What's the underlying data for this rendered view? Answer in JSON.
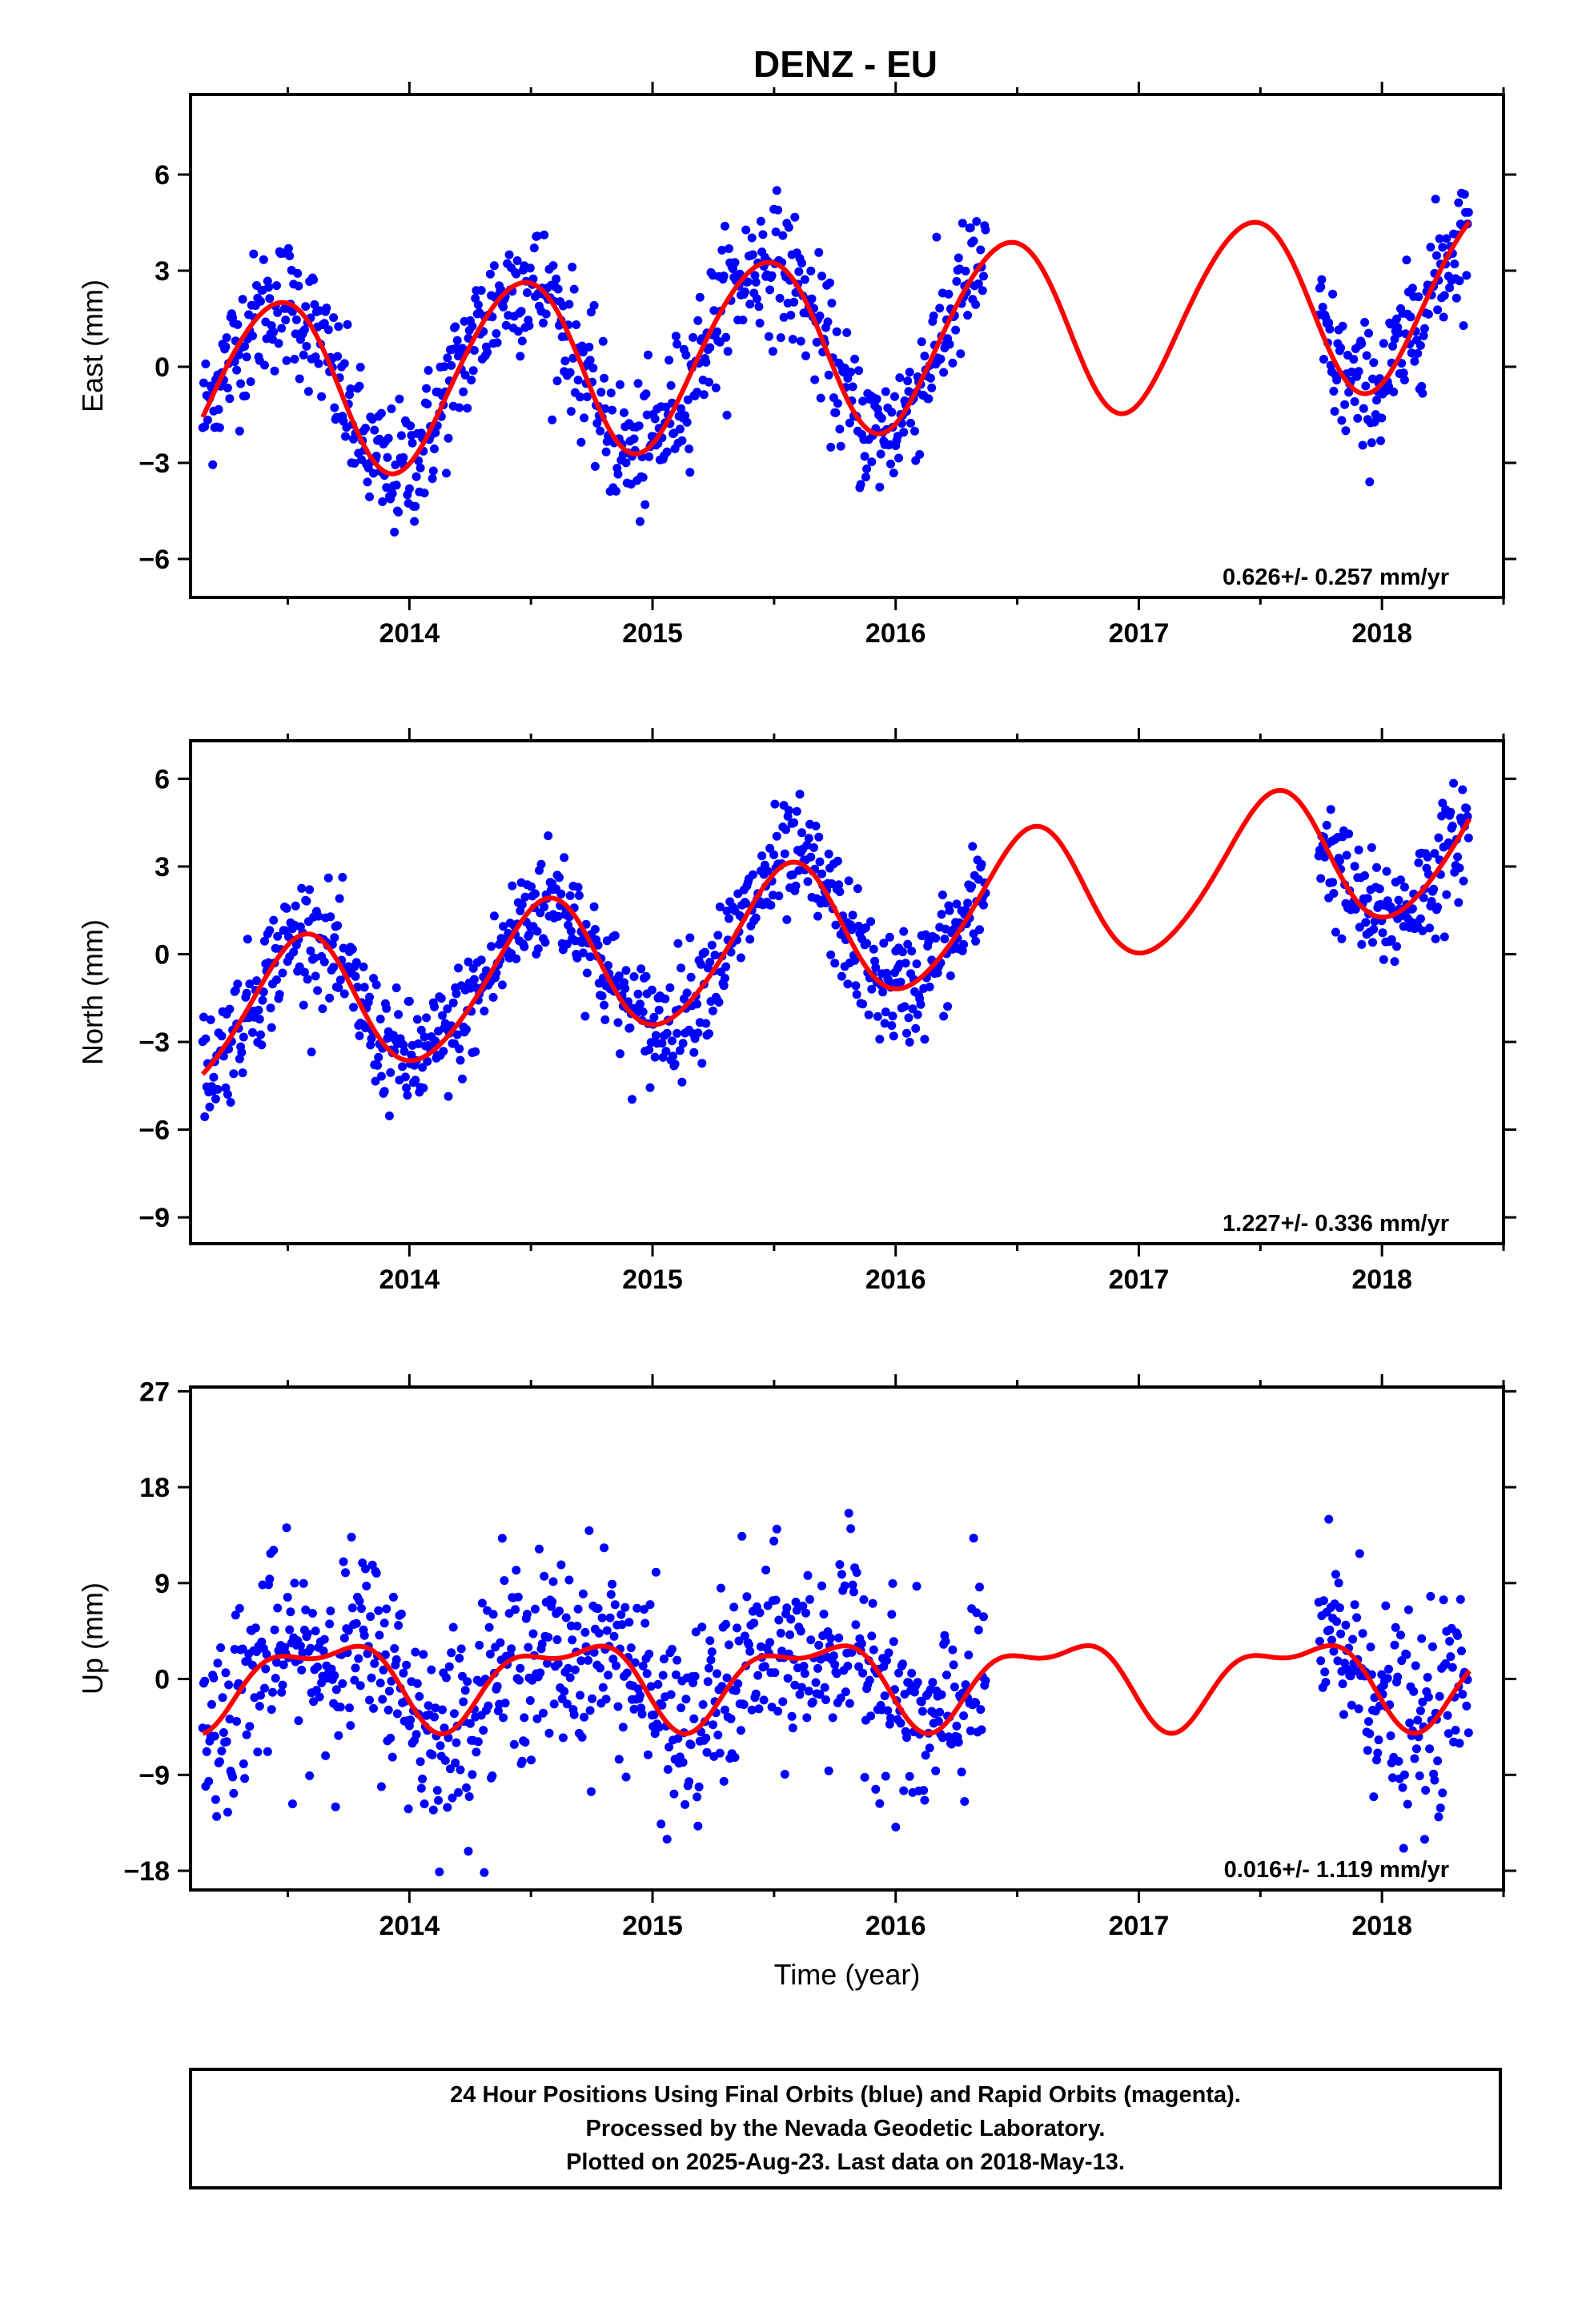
{
  "title": "DENZ - EU",
  "footer": {
    "line1": "24 Hour Positions Using Final Orbits (blue) and Rapid Orbits (magenta).",
    "line2": "Processed by the Nevada Geodetic Laboratory.",
    "line3": "Plotted on 2025-Aug-23. Last data on 2018-May-13."
  },
  "colors": {
    "points": "#0000ff",
    "fit": "#ff0000",
    "axis": "#000000"
  },
  "chart_data": [
    {
      "type": "scatter",
      "component": "east",
      "ylabel": "East (mm)",
      "xlabel": "",
      "xlim": [
        2013.1,
        2018.5
      ],
      "ylim": [
        -7.2,
        8.5
      ],
      "xticks": [
        2014,
        2015,
        2016,
        2017,
        2018
      ],
      "yticks": [
        -6,
        -3,
        0,
        3,
        6
      ],
      "rate_text": "0.626+/- 0.257 mm/yr",
      "series": [
        {
          "kind": "points",
          "segments": [
            [
              2013.15,
              2016.37
            ],
            [
              2017.74,
              2018.36
            ]
          ],
          "rate": 0.626,
          "amp1": 2.8,
          "ph1": 0.2,
          "amp2": 0.2,
          "ph2": 0.0,
          "offset": -0.9,
          "noise": 1.05
        },
        {
          "kind": "fit",
          "from": 2013.15,
          "to": 2018.36
        }
      ]
    },
    {
      "type": "scatter",
      "component": "north",
      "ylabel": "North (mm)",
      "xlabel": "",
      "xlim": [
        2013.1,
        2018.5
      ],
      "ylim": [
        -9.9,
        7.3
      ],
      "xticks": [
        2014,
        2015,
        2016,
        2017,
        2018
      ],
      "yticks": [
        -9,
        -6,
        -3,
        0,
        3,
        6
      ],
      "rate_text": "1.227+/- 0.336 mm/yr",
      "series": [
        {
          "kind": "points",
          "segments": [
            [
              2013.15,
              2016.37
            ],
            [
              2017.74,
              2018.36
            ]
          ],
          "rate": 1.227,
          "amp1": 2.4,
          "ph1": 0.3,
          "amp2": 0.25,
          "ph2": 0.0,
          "offset": -2.4,
          "noise": 1.0
        },
        {
          "kind": "fit",
          "from": 2013.15,
          "to": 2018.36
        }
      ]
    },
    {
      "type": "scatter",
      "component": "up",
      "ylabel": "Up (mm)",
      "xlabel": "Time (year)",
      "xlim": [
        2013.1,
        2018.5
      ],
      "ylim": [
        -19.8,
        27.4
      ],
      "xticks": [
        2014,
        2015,
        2016,
        2017,
        2018
      ],
      "yticks": [
        -18,
        -9,
        0,
        9,
        18,
        27
      ],
      "rate_text": "0.016+/- 1.119 mm/yr",
      "series": [
        {
          "kind": "points",
          "segments": [
            [
              2013.15,
              2016.37
            ],
            [
              2017.74,
              2018.36
            ]
          ],
          "rate": 0.016,
          "amp1": 3.6,
          "ph1": 0.4,
          "amp2": 1.6,
          "ph2": 0.75,
          "offset": 0.0,
          "noise": 4.6
        },
        {
          "kind": "fit",
          "from": 2013.15,
          "to": 2018.36
        }
      ]
    }
  ]
}
